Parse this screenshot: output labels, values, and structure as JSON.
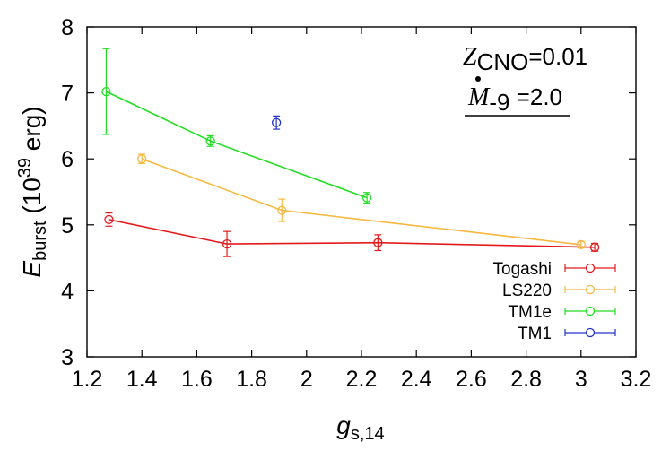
{
  "chart_data": {
    "type": "line",
    "xlim": [
      1.2,
      3.2
    ],
    "ylim": [
      3,
      8
    ],
    "xticks": [
      "1.2",
      "1.4",
      "1.6",
      "1.8",
      "2",
      "2.2",
      "2.4",
      "2.6",
      "2.8",
      "3",
      "3.2"
    ],
    "yticks": [
      "3",
      "4",
      "5",
      "6",
      "7",
      "8"
    ],
    "xlabel": {
      "main": "g",
      "sub": "s,14"
    },
    "ylabel": {
      "main": "E",
      "sub": "burst",
      "units_pre": " (10",
      "sup": "39",
      "units_post": " erg)"
    },
    "annotation": {
      "line1_main": "Z",
      "line1_sub": "CNO",
      "line1_rest": "=0.01",
      "line2_main": "M",
      "line2_sub": "-9",
      "line2_rest": " =2.0"
    },
    "legend_position": "bottom-right",
    "series": [
      {
        "name": "Togashi",
        "color": "#e31a1c",
        "line": true,
        "points": [
          {
            "x": 1.28,
            "y": 5.08,
            "err": 0.1
          },
          {
            "x": 1.71,
            "y": 4.71,
            "err": 0.19
          },
          {
            "x": 2.26,
            "y": 4.73,
            "err": 0.12
          },
          {
            "x": 3.05,
            "y": 4.66,
            "err": 0.06
          }
        ]
      },
      {
        "name": "LS220",
        "color": "#f5b841",
        "line": true,
        "points": [
          {
            "x": 1.4,
            "y": 6.0,
            "err": 0.07
          },
          {
            "x": 1.91,
            "y": 5.22,
            "err": 0.17
          },
          {
            "x": 3.0,
            "y": 4.7,
            "err": 0.05
          }
        ]
      },
      {
        "name": "TM1e",
        "color": "#22dd22",
        "line": true,
        "points": [
          {
            "x": 1.27,
            "y": 7.02,
            "err": 0.65
          },
          {
            "x": 1.65,
            "y": 6.27,
            "err": 0.08
          },
          {
            "x": 2.22,
            "y": 5.41,
            "err": 0.08
          }
        ]
      },
      {
        "name": "TM1",
        "color": "#2233cc",
        "line": false,
        "points": [
          {
            "x": 1.89,
            "y": 6.55,
            "err": 0.1
          }
        ]
      }
    ]
  }
}
